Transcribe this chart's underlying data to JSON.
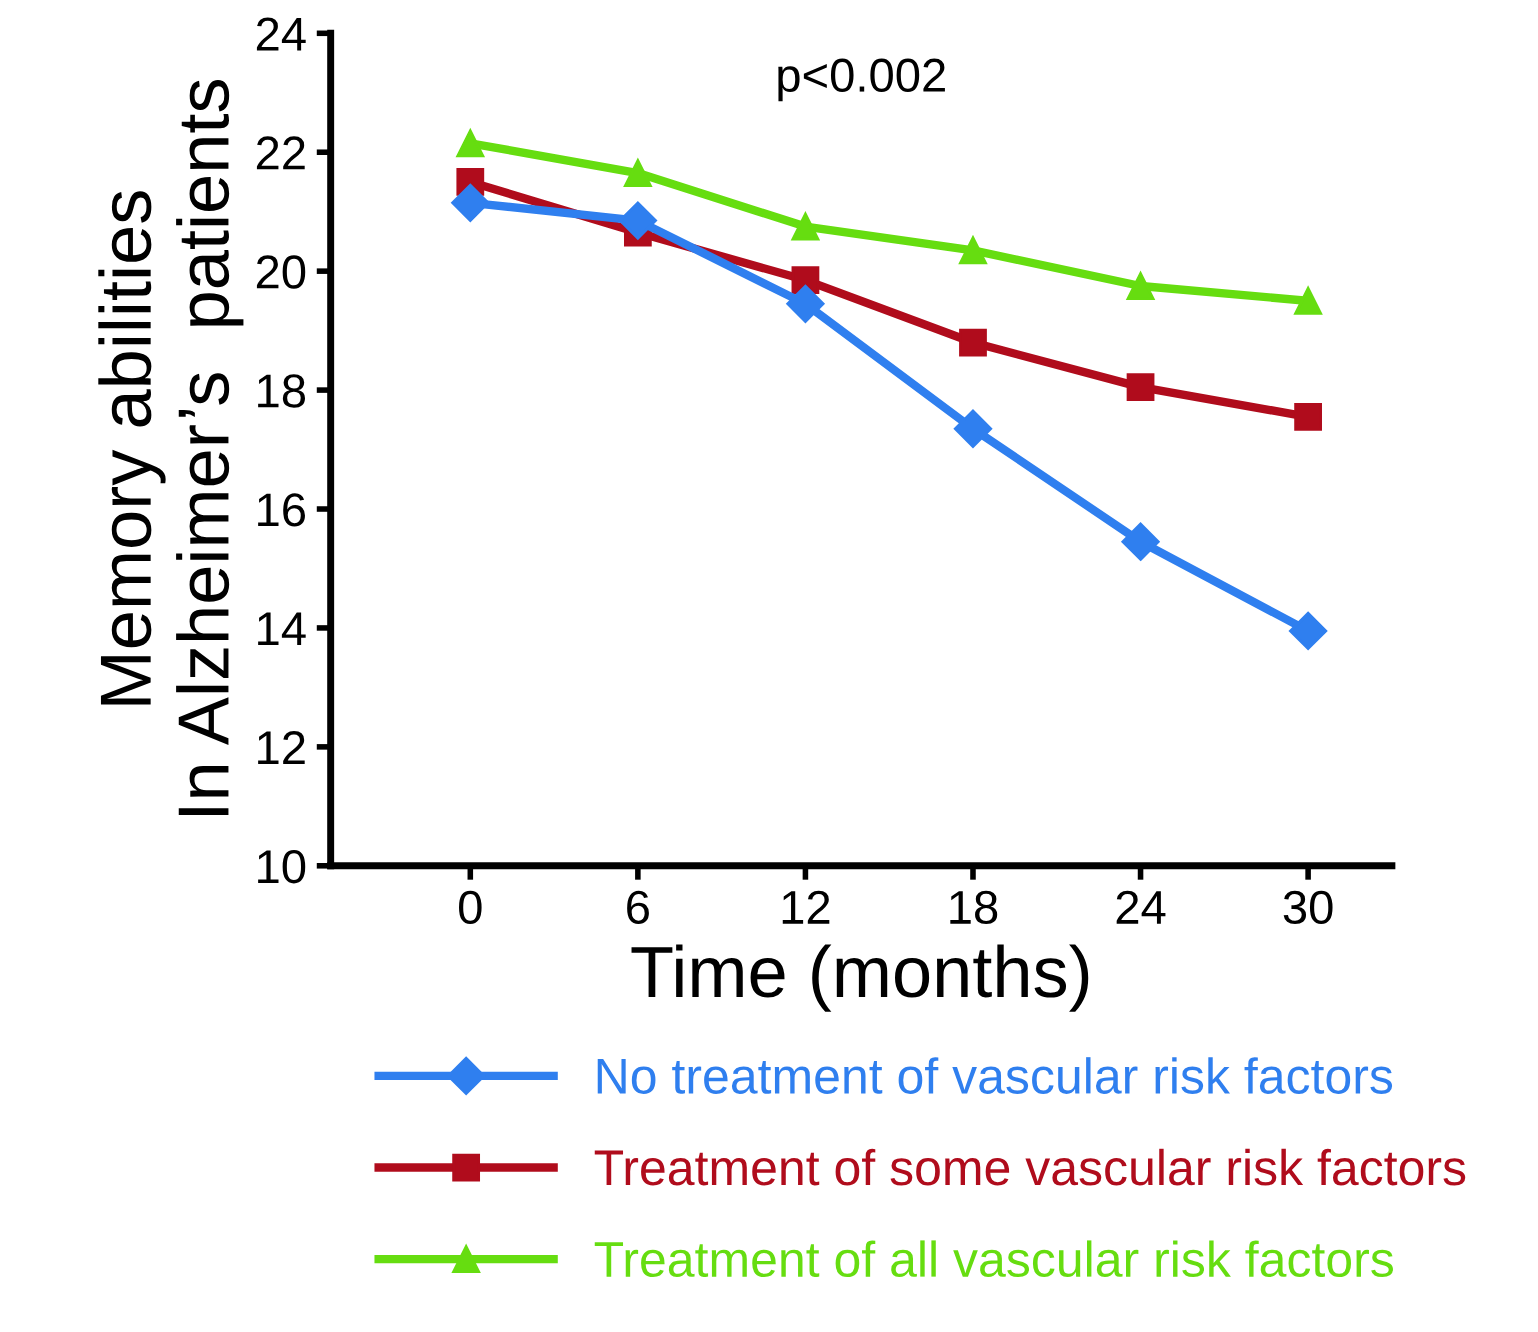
{
  "chart_data": {
    "type": "line",
    "xlabel": "Time (months)",
    "ylabel": "Memory abilities\nIn Alzheimer’s  patients",
    "x": [
      0,
      6,
      12,
      18,
      24,
      30
    ],
    "series": [
      {
        "name": "No treatment of vascular risk factors",
        "color": "#2f7fef",
        "marker": "diamond",
        "values": [
          21.15,
          20.85,
          19.45,
          17.35,
          15.45,
          13.95
        ]
      },
      {
        "name": "Treatment of some vascular risk factors",
        "color": "#b00c1c",
        "marker": "square",
        "values": [
          21.5,
          20.65,
          19.85,
          18.8,
          18.05,
          17.55
        ]
      },
      {
        "name": "Treatment of all vascular risk factors",
        "color": "#66dd10",
        "marker": "triangle",
        "values": [
          22.15,
          21.65,
          20.75,
          20.35,
          19.75,
          19.5
        ]
      }
    ],
    "xlim": [
      -5,
      33
    ],
    "xticks": [
      0,
      6,
      12,
      18,
      24,
      30
    ],
    "ylim": [
      10,
      24
    ],
    "yticks": [
      10,
      12,
      14,
      16,
      18,
      20,
      22,
      24
    ],
    "annotations": [
      "p<0.002"
    ],
    "grid": false,
    "legend": "bottom",
    "line_style": "solid"
  }
}
